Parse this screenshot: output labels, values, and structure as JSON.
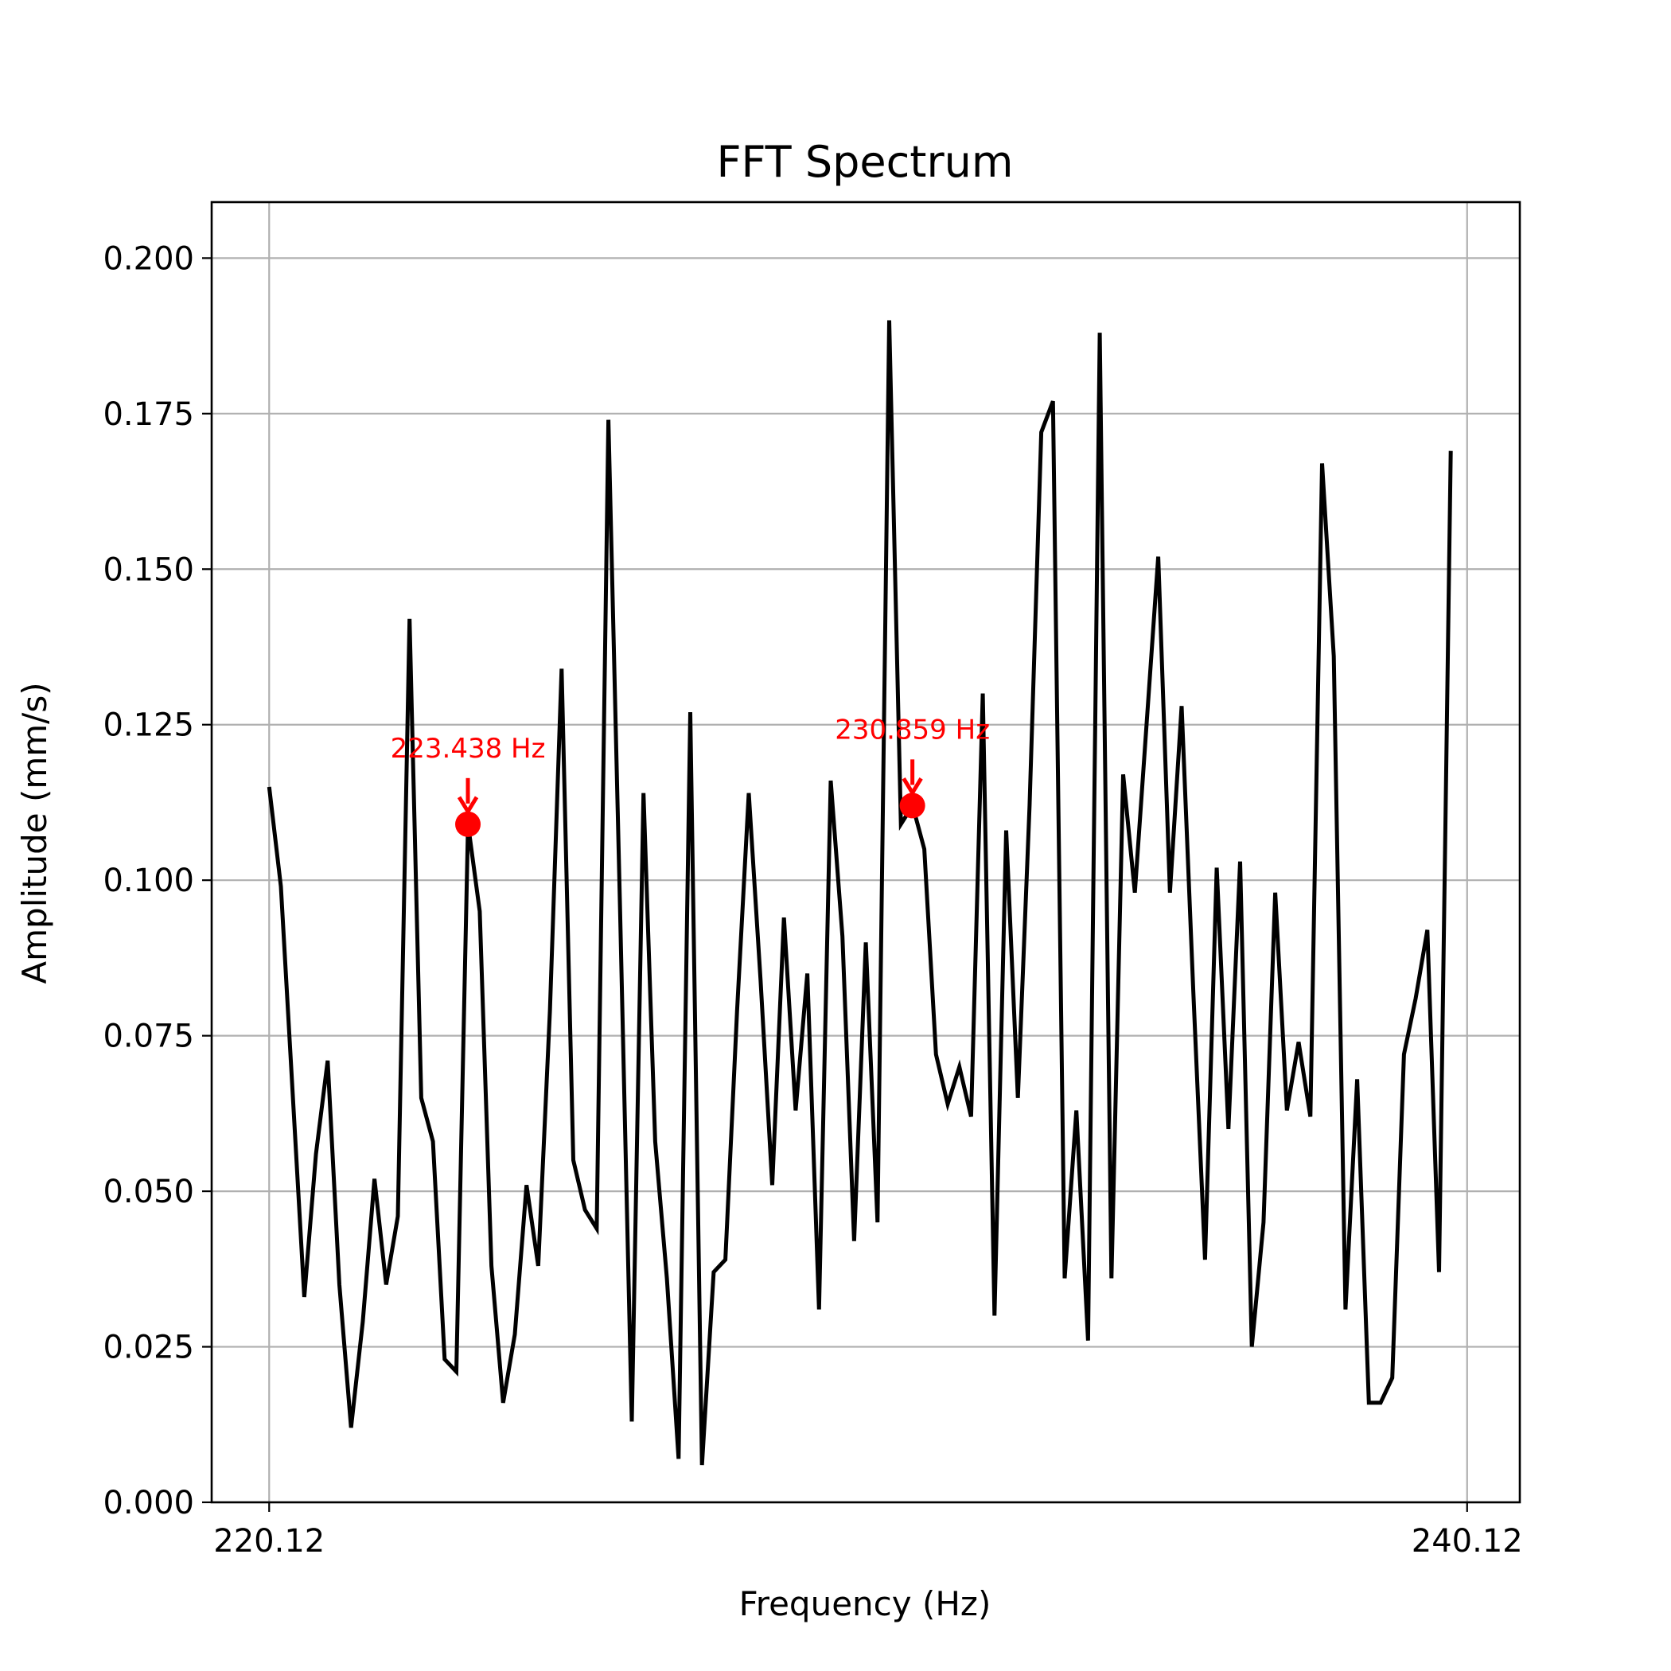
{
  "chart_data": {
    "type": "line",
    "title": "FFT Spectrum",
    "xlabel": "Frequency (Hz)",
    "ylabel": "Amplitude (mm/s)",
    "xlim": [
      219.16,
      241.0
    ],
    "ylim": [
      0,
      0.209
    ],
    "grid": true,
    "line_color": "#000000",
    "grid_color": "#b0b0b0",
    "x_ticks": [
      {
        "value": 220.12,
        "label": "220.12"
      },
      {
        "value": 240.12,
        "label": "240.12"
      }
    ],
    "y_ticks": [
      {
        "value": 0.0,
        "label": "0.000"
      },
      {
        "value": 0.025,
        "label": "0.025"
      },
      {
        "value": 0.05,
        "label": "0.050"
      },
      {
        "value": 0.075,
        "label": "0.075"
      },
      {
        "value": 0.1,
        "label": "0.100"
      },
      {
        "value": 0.125,
        "label": "0.125"
      },
      {
        "value": 0.15,
        "label": "0.150"
      },
      {
        "value": 0.175,
        "label": "0.175"
      },
      {
        "value": 0.2,
        "label": "0.200"
      }
    ],
    "x_start": 220.12,
    "x_step": 0.1953125,
    "values": [
      0.115,
      0.099,
      0.066,
      0.033,
      0.056,
      0.071,
      0.035,
      0.012,
      0.029,
      0.052,
      0.035,
      0.046,
      0.142,
      0.065,
      0.058,
      0.023,
      0.021,
      0.109,
      0.095,
      0.038,
      0.016,
      0.027,
      0.051,
      0.038,
      0.079,
      0.134,
      0.055,
      0.047,
      0.044,
      0.174,
      0.095,
      0.013,
      0.114,
      0.058,
      0.036,
      0.007,
      0.127,
      0.006,
      0.037,
      0.039,
      0.079,
      0.114,
      0.084,
      0.051,
      0.094,
      0.063,
      0.085,
      0.031,
      0.116,
      0.091,
      0.042,
      0.09,
      0.045,
      0.19,
      0.109,
      0.112,
      0.105,
      0.072,
      0.064,
      0.07,
      0.062,
      0.13,
      0.03,
      0.108,
      0.065,
      0.112,
      0.172,
      0.177,
      0.036,
      0.063,
      0.026,
      0.188,
      0.036,
      0.117,
      0.098,
      0.125,
      0.152,
      0.098,
      0.128,
      0.082,
      0.039,
      0.102,
      0.06,
      0.103,
      0.025,
      0.045,
      0.098,
      0.063,
      0.074,
      0.062,
      0.167,
      0.136,
      0.031,
      0.068,
      0.016,
      0.016,
      0.02,
      0.072,
      0.081,
      0.092,
      0.037,
      0.169
    ],
    "annotations": [
      {
        "x": 223.438,
        "y": 0.109,
        "label": "223.438 Hz",
        "color": "#ff0000"
      },
      {
        "x": 230.859,
        "y": 0.112,
        "label": "230.859 Hz",
        "color": "#ff0000"
      }
    ]
  }
}
